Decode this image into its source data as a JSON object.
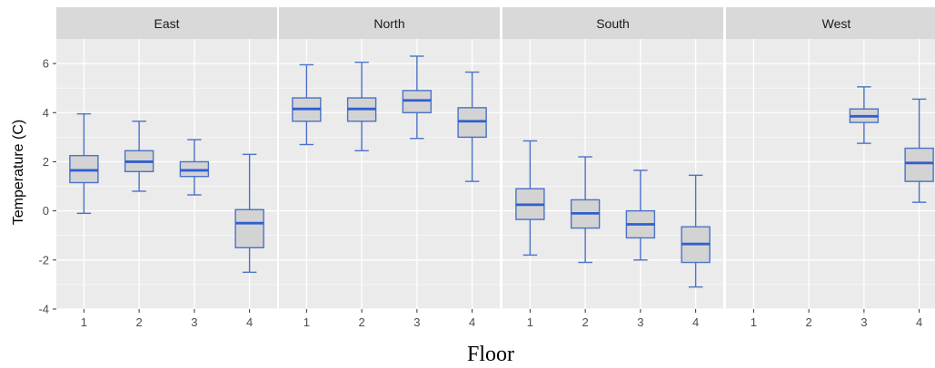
{
  "chart_data": {
    "type": "boxplot",
    "xlabel": "Floor",
    "ylabel": "Temperature (C)",
    "ylim": [
      -4,
      7
    ],
    "yticks": [
      -4,
      -2,
      0,
      2,
      4,
      6
    ],
    "categories": [
      "1",
      "2",
      "3",
      "4"
    ],
    "grid": true,
    "colors": {
      "box_fill": "#d3d3d3",
      "box_stroke": "#4a72c8",
      "median": "#2f5fd0",
      "panel_bg": "#ebebeb",
      "strip_bg": "#d9d9d9",
      "grid": "#ffffff"
    },
    "panels": [
      {
        "name": "East",
        "boxes": [
          {
            "floor": "1",
            "min": -0.1,
            "q1": 1.15,
            "median": 1.65,
            "q3": 2.25,
            "max": 3.95
          },
          {
            "floor": "2",
            "min": 0.8,
            "q1": 1.6,
            "median": 2.0,
            "q3": 2.45,
            "max": 3.65
          },
          {
            "floor": "3",
            "min": 0.65,
            "q1": 1.4,
            "median": 1.65,
            "q3": 2.0,
            "max": 2.9
          },
          {
            "floor": "4",
            "min": -2.5,
            "q1": -1.5,
            "median": -0.5,
            "q3": 0.05,
            "max": 2.3
          }
        ]
      },
      {
        "name": "North",
        "boxes": [
          {
            "floor": "1",
            "min": 2.7,
            "q1": 3.65,
            "median": 4.15,
            "q3": 4.6,
            "max": 5.95
          },
          {
            "floor": "2",
            "min": 2.45,
            "q1": 3.65,
            "median": 4.15,
            "q3": 4.6,
            "max": 6.05
          },
          {
            "floor": "3",
            "min": 2.95,
            "q1": 4.0,
            "median": 4.5,
            "q3": 4.9,
            "max": 6.3
          },
          {
            "floor": "4",
            "min": 1.2,
            "q1": 3.0,
            "median": 3.65,
            "q3": 4.2,
            "max": 5.65
          }
        ]
      },
      {
        "name": "South",
        "boxes": [
          {
            "floor": "1",
            "min": -1.8,
            "q1": -0.35,
            "median": 0.25,
            "q3": 0.9,
            "max": 2.85
          },
          {
            "floor": "2",
            "min": -2.1,
            "q1": -0.7,
            "median": -0.1,
            "q3": 0.45,
            "max": 2.2
          },
          {
            "floor": "3",
            "min": -2.0,
            "q1": -1.1,
            "median": -0.55,
            "q3": 0.0,
            "max": 1.65
          },
          {
            "floor": "4",
            "min": -3.1,
            "q1": -2.1,
            "median": -1.35,
            "q3": -0.65,
            "max": 1.45
          }
        ]
      },
      {
        "name": "West",
        "boxes": [
          {
            "floor": "3",
            "min": 2.75,
            "q1": 3.6,
            "median": 3.85,
            "q3": 4.15,
            "max": 5.05
          },
          {
            "floor": "4",
            "min": 0.35,
            "q1": 1.2,
            "median": 1.95,
            "q3": 2.55,
            "max": 4.55
          }
        ]
      }
    ]
  }
}
